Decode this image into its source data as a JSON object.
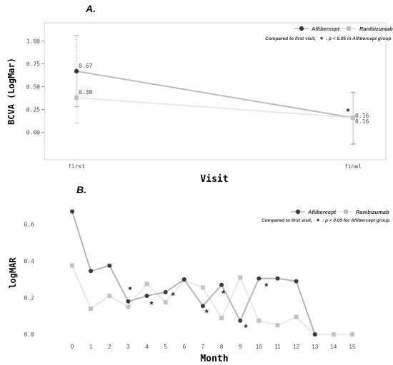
{
  "chart_data": [
    {
      "panel_label": "A.",
      "type": "line",
      "x_categories": [
        "first",
        "final"
      ],
      "xlabel": "Visit",
      "ylabel": "BCVA (LogMar)",
      "ylim": [
        -0.3,
        1.2
      ],
      "yticks": [
        0.0,
        0.25,
        0.5,
        0.75,
        1.0
      ],
      "ytick_labels": [
        "0.00",
        "0.25",
        "0.50",
        "0.75",
        "1.00"
      ],
      "grid": false,
      "legend_position": "top-right",
      "series": [
        {
          "name": "Aflibercept",
          "color": "#3a3a3a",
          "line_color": "#bdbdbd",
          "marker": "circle",
          "values": [
            0.67,
            0.16
          ],
          "error_low": [
            0.28,
            -0.13
          ],
          "error_high": [
            1.06,
            0.44
          ],
          "data_labels": [
            "0.67",
            "0.16"
          ]
        },
        {
          "name": "Ranibizumab",
          "color": "#c2c2c2",
          "line_color": "#e2e2e2",
          "marker": "square",
          "values": [
            0.38,
            0.16
          ],
          "error_low": [
            0.1,
            -0.12
          ],
          "error_high": [
            0.66,
            0.43
          ],
          "data_labels": [
            "0.38",
            "0.16"
          ]
        }
      ],
      "significance": {
        "note_prefix": "Compared to first visit,",
        "note_symbol": "*",
        "note_text": ": p < 0.05 in Aflibercept group",
        "marks": [
          {
            "x": "final",
            "y": 0.24
          }
        ]
      }
    },
    {
      "panel_label": "B.",
      "type": "line",
      "x": [
        0,
        1,
        2,
        3,
        4,
        5,
        6,
        7,
        8,
        9,
        10,
        11,
        12,
        13,
        14,
        15
      ],
      "xlabel": "Month",
      "ylabel": "logMAR",
      "xlim": [
        -1,
        16
      ],
      "ylim": [
        -0.05,
        0.75
      ],
      "yticks": [
        0.0,
        0.2,
        0.4,
        0.6
      ],
      "ytick_labels": [
        "0.0",
        "0.2",
        "0.4",
        "0.6"
      ],
      "grid": false,
      "legend_position": "top-right",
      "series": [
        {
          "name": "Aflibercept",
          "color": "#3a3a3a",
          "line_color": "#b5b5b5",
          "marker": "circle",
          "x": [
            0,
            1,
            2,
            3,
            4,
            5,
            6,
            7,
            8,
            9,
            10,
            11,
            12,
            13
          ],
          "values": [
            0.67,
            0.345,
            0.375,
            0.18,
            0.21,
            0.23,
            0.3,
            0.155,
            0.27,
            0.075,
            0.305,
            0.305,
            0.29,
            0.0
          ]
        },
        {
          "name": "Ranibizumab",
          "color": "#c2c2c2",
          "line_color": "#e2e2e2",
          "marker": "square",
          "x": [
            0,
            1,
            2,
            3,
            4,
            5,
            6,
            7,
            8,
            9,
            10,
            11,
            12,
            13,
            14,
            15
          ],
          "values": [
            0.375,
            0.14,
            0.21,
            0.15,
            0.275,
            0.175,
            0.295,
            0.255,
            0.09,
            0.31,
            0.075,
            0.05,
            0.095,
            0.0,
            0.0,
            0.0
          ]
        }
      ],
      "significance": {
        "note_prefix": "Compared to first visit,",
        "note_symbol": "*",
        "note_text": ": p < 0.05 for Aflibercept group",
        "marks": [
          {
            "x": 3.1,
            "y": 0.245
          },
          {
            "x": 4.25,
            "y": 0.165
          },
          {
            "x": 5.4,
            "y": 0.215
          },
          {
            "x": 7.2,
            "y": 0.12
          },
          {
            "x": 8.1,
            "y": 0.225
          },
          {
            "x": 9.3,
            "y": 0.04
          },
          {
            "x": 10.4,
            "y": 0.265
          }
        ]
      }
    }
  ]
}
